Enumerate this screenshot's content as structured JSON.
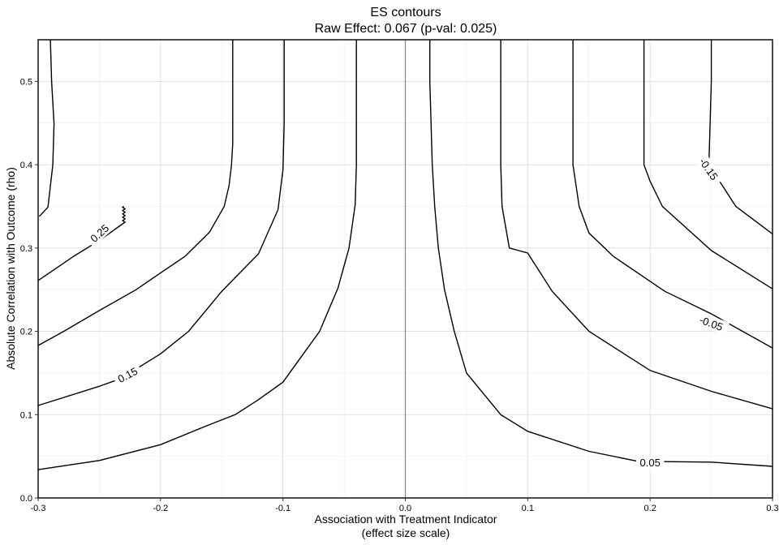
{
  "chart_data": {
    "type": "contour",
    "title": "ES contours",
    "subtitle": "Raw Effect: 0.067 (p-val: 0.025)",
    "xlabel": "Association with Treatment Indicator",
    "xlabel_sub": "(effect size scale)",
    "ylabel": "Absolute Correlation with Outcome (rho)",
    "xlim": [
      -0.3,
      0.3
    ],
    "ylim": [
      0,
      0.55
    ],
    "xticks": [
      -0.3,
      -0.2,
      -0.1,
      0.0,
      0.1,
      0.2,
      0.3
    ],
    "xtick_labels": [
      "-0.3",
      "-0.2",
      "-0.1",
      "0.0",
      "0.1",
      "0.2",
      "0.3"
    ],
    "yticks": [
      0.0,
      0.1,
      0.2,
      0.3,
      0.4,
      0.5
    ],
    "ytick_labels": [
      "0.0",
      "0.1",
      "0.2",
      "0.3",
      "0.4",
      "0.5"
    ],
    "reference_line_x": 0.0,
    "grid": true,
    "contours": [
      {
        "level": 0.3,
        "points": [
          [
            -0.299,
            0.338
          ],
          [
            -0.292,
            0.349
          ],
          [
            -0.288,
            0.4
          ],
          [
            -0.287,
            0.449
          ],
          [
            -0.289,
            0.5
          ],
          [
            -0.29,
            0.55
          ]
        ]
      },
      {
        "level": 0.25,
        "points": [
          [
            -0.3,
            0.261
          ],
          [
            -0.27,
            0.291
          ],
          [
            -0.25,
            0.309
          ],
          [
            -0.231,
            0.329
          ],
          [
            -0.23,
            0.33
          ],
          [
            -0.229,
            0.331
          ],
          [
            -0.23,
            0.332
          ],
          [
            -0.231,
            0.333
          ],
          [
            -0.23,
            0.334
          ],
          [
            -0.229,
            0.335
          ],
          [
            -0.23,
            0.336
          ],
          [
            -0.231,
            0.337
          ],
          [
            -0.23,
            0.338
          ],
          [
            -0.229,
            0.339
          ],
          [
            -0.23,
            0.34
          ],
          [
            -0.231,
            0.341
          ],
          [
            -0.23,
            0.342
          ],
          [
            -0.229,
            0.343
          ],
          [
            -0.23,
            0.344
          ],
          [
            -0.231,
            0.345
          ],
          [
            -0.23,
            0.346
          ],
          [
            -0.229,
            0.347
          ],
          [
            -0.23,
            0.348
          ],
          [
            -0.231,
            0.349
          ],
          [
            -0.23,
            0.35
          ]
        ]
      },
      {
        "level": 0.2,
        "points": [
          [
            -0.3,
            0.183
          ],
          [
            -0.279,
            0.2
          ],
          [
            -0.25,
            0.225
          ],
          [
            -0.22,
            0.25
          ],
          [
            -0.2,
            0.27
          ],
          [
            -0.18,
            0.29
          ],
          [
            -0.16,
            0.319
          ],
          [
            -0.148,
            0.35
          ],
          [
            -0.144,
            0.375
          ],
          [
            -0.142,
            0.4
          ],
          [
            -0.141,
            0.425
          ],
          [
            -0.141,
            0.45
          ],
          [
            -0.141,
            0.475
          ],
          [
            -0.141,
            0.5
          ],
          [
            -0.141,
            0.525
          ],
          [
            -0.141,
            0.55
          ]
        ]
      },
      {
        "level": 0.15,
        "points": [
          [
            -0.3,
            0.111
          ],
          [
            -0.25,
            0.134
          ],
          [
            -0.233,
            0.143
          ],
          [
            -0.2,
            0.173
          ],
          [
            -0.177,
            0.2
          ],
          [
            -0.15,
            0.248
          ],
          [
            -0.12,
            0.293
          ],
          [
            -0.104,
            0.346
          ],
          [
            -0.1,
            0.394
          ],
          [
            -0.099,
            0.45
          ],
          [
            -0.099,
            0.5
          ],
          [
            -0.099,
            0.55
          ]
        ]
      },
      {
        "level": 0.1,
        "points": [
          [
            -0.3,
            0.034
          ],
          [
            -0.25,
            0.045
          ],
          [
            -0.2,
            0.064
          ],
          [
            -0.16,
            0.088
          ],
          [
            -0.139,
            0.1
          ],
          [
            -0.12,
            0.118
          ],
          [
            -0.1,
            0.139
          ],
          [
            -0.07,
            0.2
          ],
          [
            -0.055,
            0.252
          ],
          [
            -0.046,
            0.3
          ],
          [
            -0.041,
            0.352
          ],
          [
            -0.04,
            0.4
          ],
          [
            -0.04,
            0.45
          ],
          [
            -0.04,
            0.5
          ],
          [
            -0.04,
            0.55
          ]
        ]
      },
      {
        "level": 0.05,
        "points": [
          [
            0.02,
            0.55
          ],
          [
            0.02,
            0.5
          ],
          [
            0.021,
            0.45
          ],
          [
            0.022,
            0.4
          ],
          [
            0.024,
            0.35
          ],
          [
            0.027,
            0.3
          ],
          [
            0.032,
            0.25
          ],
          [
            0.04,
            0.2
          ],
          [
            0.05,
            0.15
          ],
          [
            0.078,
            0.1
          ],
          [
            0.1,
            0.08
          ],
          [
            0.15,
            0.056
          ],
          [
            0.19,
            0.044
          ],
          [
            0.25,
            0.043
          ],
          [
            0.3,
            0.038
          ]
        ]
      },
      {
        "level": 0.0,
        "points": [
          [
            0.078,
            0.55
          ],
          [
            0.078,
            0.5
          ],
          [
            0.078,
            0.45
          ],
          [
            0.078,
            0.4
          ],
          [
            0.079,
            0.35
          ],
          [
            0.085,
            0.3
          ],
          [
            0.1,
            0.294
          ],
          [
            0.12,
            0.248
          ],
          [
            0.15,
            0.2
          ],
          [
            0.2,
            0.153
          ],
          [
            0.25,
            0.128
          ],
          [
            0.3,
            0.107
          ]
        ]
      },
      {
        "level": -0.05,
        "points": [
          [
            0.137,
            0.55
          ],
          [
            0.137,
            0.5
          ],
          [
            0.137,
            0.45
          ],
          [
            0.137,
            0.4
          ],
          [
            0.142,
            0.35
          ],
          [
            0.15,
            0.318
          ],
          [
            0.17,
            0.29
          ],
          [
            0.2,
            0.26
          ],
          [
            0.212,
            0.248
          ],
          [
            0.25,
            0.221
          ],
          [
            0.3,
            0.18
          ]
        ]
      },
      {
        "level": -0.1,
        "points": [
          [
            0.195,
            0.55
          ],
          [
            0.195,
            0.5
          ],
          [
            0.195,
            0.45
          ],
          [
            0.195,
            0.4
          ],
          [
            0.2,
            0.38
          ],
          [
            0.21,
            0.35
          ],
          [
            0.25,
            0.297
          ],
          [
            0.3,
            0.251
          ]
        ]
      },
      {
        "level": -0.15,
        "points": [
          [
            0.25,
            0.55
          ],
          [
            0.25,
            0.5
          ],
          [
            0.249,
            0.45
          ],
          [
            0.248,
            0.4
          ],
          [
            0.27,
            0.35
          ],
          [
            0.3,
            0.317
          ]
        ]
      }
    ],
    "contour_labels": [
      {
        "text": "0.25",
        "x": -0.25,
        "y": 0.318,
        "angle": -42
      },
      {
        "text": "0.15",
        "x": -0.227,
        "y": 0.148,
        "angle": -28
      },
      {
        "text": "0.05",
        "x": 0.2,
        "y": 0.043,
        "angle": 0
      },
      {
        "text": "-0.05",
        "x": 0.25,
        "y": 0.21,
        "angle": 20
      },
      {
        "text": "-0.15",
        "x": 0.248,
        "y": 0.395,
        "angle": 55
      }
    ]
  }
}
